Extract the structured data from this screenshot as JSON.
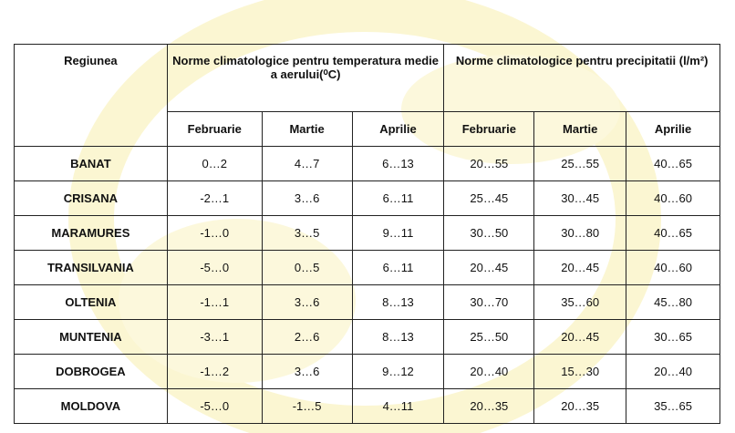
{
  "table": {
    "header": {
      "region": "Regiunea",
      "groups": [
        "Norme climatologice pentru temperatura medie a aerului(⁰C)",
        "Norme climatologice pentru precipitatii (l/m²)"
      ],
      "months": [
        "Februarie",
        "Martie",
        "Aprilie",
        "Februarie",
        "Martie",
        "Aprilie"
      ]
    },
    "rows": [
      [
        "BANAT",
        "0…2",
        "4…7",
        "6…13",
        "20…55",
        "25…55",
        "40…65"
      ],
      [
        "CRISANA",
        "-2…1",
        "3…6",
        "6…11",
        "25…45",
        "30…45",
        "40…60"
      ],
      [
        "MARAMURES",
        "-1…0",
        "3…5",
        "9…11",
        "30…50",
        "30…80",
        "40…65"
      ],
      [
        "TRANSILVANIA",
        "-5…0",
        "0…5",
        "6…11",
        "20…45",
        "20…45",
        "40…60"
      ],
      [
        "OLTENIA",
        "-1…1",
        "3…6",
        "8…13",
        "30…70",
        "35…60",
        "45…80"
      ],
      [
        "MUNTENIA",
        "-3…1",
        "2…6",
        "8…13",
        "25…50",
        "20…45",
        "30…65"
      ],
      [
        "DOBROGEA",
        "-1…2",
        "3…6",
        "9…12",
        "20…40",
        "15…30",
        "20…40"
      ],
      [
        "MOLDOVA",
        "-5…0",
        "-1…5",
        "4…11",
        "20…35",
        "20…35",
        "35…65"
      ]
    ]
  }
}
